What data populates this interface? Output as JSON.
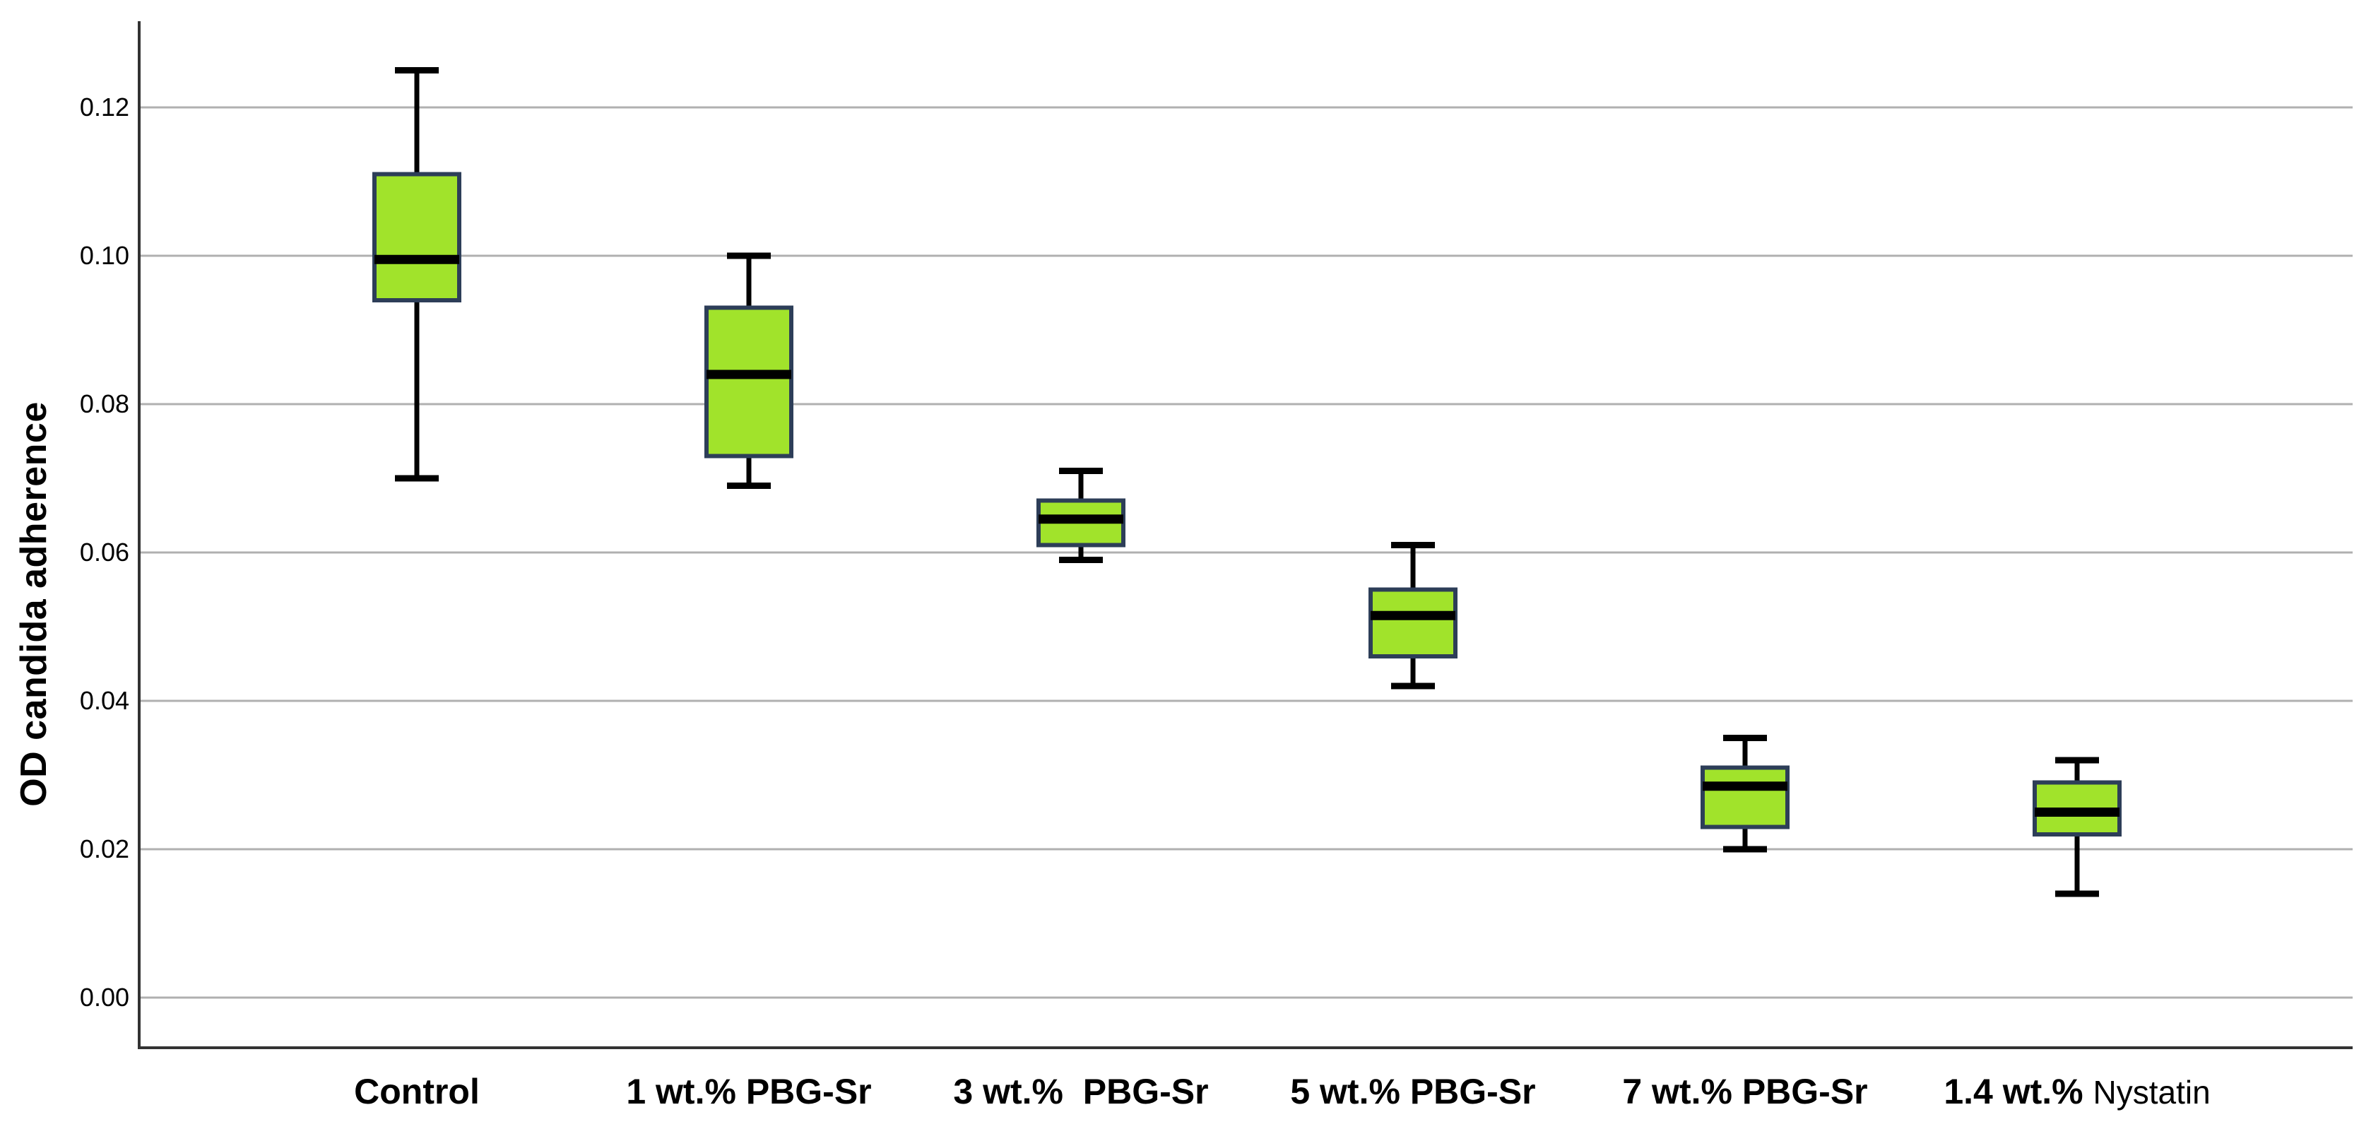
{
  "chart_data": {
    "type": "box",
    "title": "",
    "xlabel": "",
    "ylabel": "OD candida adherence",
    "ylim": [
      -0.007,
      0.132
    ],
    "grid": "horizontal gridlines at every y tick",
    "legend": "none",
    "yticks": [
      {
        "value": 0.0,
        "label": "0.00"
      },
      {
        "value": 0.02,
        "label": "0.02"
      },
      {
        "value": 0.04,
        "label": "0.04"
      },
      {
        "value": 0.06,
        "label": "0.06"
      },
      {
        "value": 0.08,
        "label": "0.08"
      },
      {
        "value": 0.1,
        "label": "0.10"
      },
      {
        "value": 0.12,
        "label": "0.12"
      }
    ],
    "categories": [
      "Control",
      "1 wt.% PBG-Sr",
      "3 wt.%  PBG-Sr",
      "5 wt.% PBG-Sr",
      "7 wt.% PBG-Sr",
      "1.4 wt.% Nystatin"
    ],
    "series": [
      {
        "category": "Control",
        "label_parts": [
          {
            "text": "Control",
            "bold": true
          }
        ],
        "whisker_low": 0.07,
        "q1": 0.094,
        "median": 0.0995,
        "q3": 0.111,
        "whisker_high": 0.125
      },
      {
        "category": "1 wt.% PBG-Sr",
        "label_parts": [
          {
            "text": "1 wt.% PBG-Sr",
            "bold": true
          }
        ],
        "whisker_low": 0.069,
        "q1": 0.073,
        "median": 0.084,
        "q3": 0.093,
        "whisker_high": 0.1
      },
      {
        "category": "3 wt.%  PBG-Sr",
        "label_parts": [
          {
            "text": "3 wt.%  PBG-Sr",
            "bold": true
          }
        ],
        "whisker_low": 0.059,
        "q1": 0.061,
        "median": 0.0645,
        "q3": 0.067,
        "whisker_high": 0.071
      },
      {
        "category": "5 wt.% PBG-Sr",
        "label_parts": [
          {
            "text": "5 wt.% PBG-Sr",
            "bold": true
          }
        ],
        "whisker_low": 0.042,
        "q1": 0.046,
        "median": 0.0515,
        "q3": 0.055,
        "whisker_high": 0.061
      },
      {
        "category": "7 wt.% PBG-Sr",
        "label_parts": [
          {
            "text": "7 wt.% PBG-Sr",
            "bold": true
          }
        ],
        "whisker_low": 0.02,
        "q1": 0.023,
        "median": 0.0285,
        "q3": 0.031,
        "whisker_high": 0.035
      },
      {
        "category": "1.4 wt.% Nystatin",
        "label_parts": [
          {
            "text": "1.4 wt.% ",
            "bold": true
          },
          {
            "text": "Nystatin",
            "bold": false
          }
        ],
        "whisker_low": 0.014,
        "q1": 0.022,
        "median": 0.025,
        "q3": 0.029,
        "whisker_high": 0.032
      }
    ],
    "colors": {
      "box_fill": "#A1E32B",
      "box_border": "#2D3E58",
      "median": "#000000",
      "whisker": "#000000",
      "gridline": "#B0B0B0",
      "axis": "#333333",
      "text": "#000000",
      "background": "#FFFFFF"
    }
  }
}
